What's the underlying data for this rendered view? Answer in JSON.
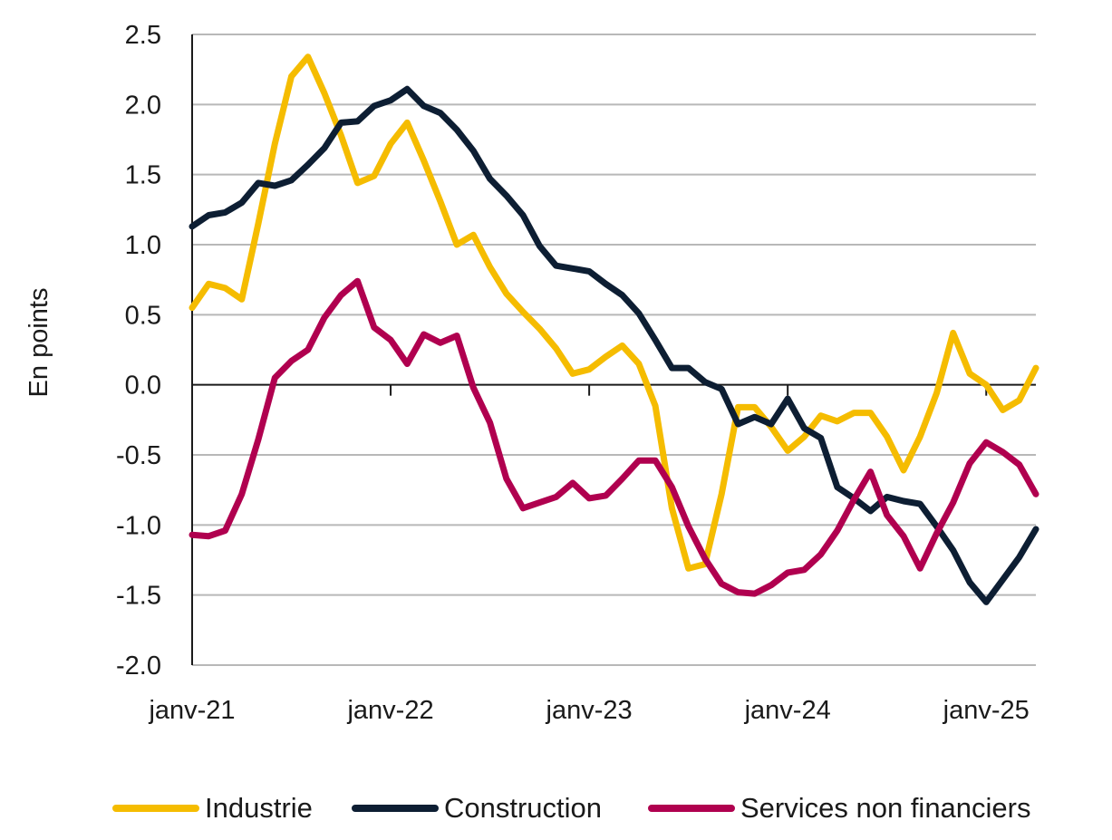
{
  "chart_data": {
    "type": "line",
    "title": "",
    "xlabel": "",
    "ylabel": "En points",
    "ylim": [
      -2.0,
      2.5
    ],
    "yticks": [
      "2.5",
      "2.0",
      "1.5",
      "1.0",
      "0.5",
      "0.0",
      "-0.5",
      "-1.0",
      "-1.5",
      "-2.0"
    ],
    "xtick_labels": [
      "janv-21",
      "janv-22",
      "janv-23",
      "janv-24",
      "janv-25"
    ],
    "x_start": "2021-01",
    "x_end": "2025-04",
    "grid": true,
    "legend_position": "bottom",
    "series": [
      {
        "name": "Industrie",
        "color": "#F5BC00",
        "values": [
          0.55,
          0.72,
          0.69,
          0.61,
          1.15,
          1.72,
          2.2,
          2.34,
          2.08,
          1.78,
          1.44,
          1.49,
          1.72,
          1.87,
          1.6,
          1.31,
          1.0,
          1.07,
          0.84,
          0.65,
          0.52,
          0.4,
          0.26,
          0.08,
          0.11,
          0.2,
          0.28,
          0.15,
          -0.15,
          -0.88,
          -1.31,
          -1.28,
          -0.78,
          -0.16,
          -0.16,
          -0.3,
          -0.47,
          -0.37,
          -0.22,
          -0.26,
          -0.2,
          -0.2,
          -0.37,
          -0.61,
          -0.37,
          -0.06,
          0.37,
          0.08,
          0.0,
          -0.18,
          -0.11,
          0.12
        ]
      },
      {
        "name": "Construction",
        "color": "#0D1E33",
        "values": [
          1.13,
          1.21,
          1.23,
          1.3,
          1.44,
          1.42,
          1.46,
          1.57,
          1.69,
          1.87,
          1.88,
          1.99,
          2.03,
          2.11,
          1.99,
          1.94,
          1.82,
          1.67,
          1.47,
          1.35,
          1.21,
          0.99,
          0.85,
          0.83,
          0.81,
          0.72,
          0.64,
          0.51,
          0.32,
          0.12,
          0.12,
          0.02,
          -0.03,
          -0.28,
          -0.23,
          -0.28,
          -0.1,
          -0.31,
          -0.38,
          -0.73,
          -0.81,
          -0.9,
          -0.8,
          -0.83,
          -0.85,
          -1.01,
          -1.18,
          -1.41,
          -1.55,
          -1.39,
          -1.23,
          -1.03
        ]
      },
      {
        "name": "Services non financiers",
        "color": "#B0004F",
        "values": [
          -1.07,
          -1.08,
          -1.04,
          -0.78,
          -0.39,
          0.05,
          0.17,
          0.25,
          0.48,
          0.64,
          0.74,
          0.41,
          0.32,
          0.15,
          0.36,
          0.3,
          0.35,
          -0.02,
          -0.27,
          -0.67,
          -0.88,
          -0.84,
          -0.8,
          -0.7,
          -0.81,
          -0.79,
          -0.67,
          -0.54,
          -0.54,
          -0.73,
          -1.01,
          -1.24,
          -1.42,
          -1.48,
          -1.49,
          -1.43,
          -1.34,
          -1.32,
          -1.21,
          -1.04,
          -0.82,
          -0.62,
          -0.93,
          -1.08,
          -1.31,
          -1.06,
          -0.84,
          -0.56,
          -0.41,
          -0.48,
          -0.57,
          -0.78
        ]
      }
    ]
  }
}
